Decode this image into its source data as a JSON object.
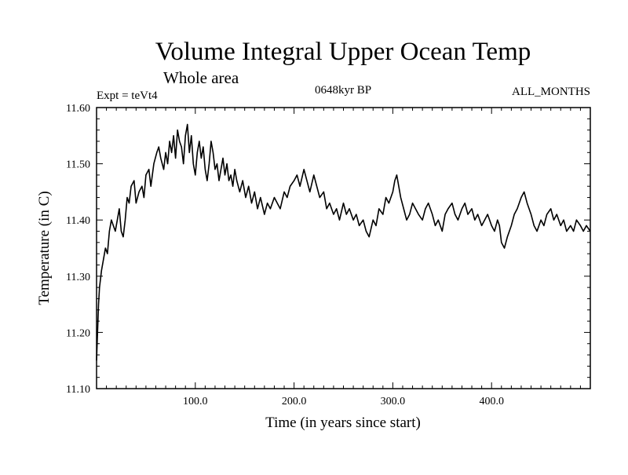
{
  "chart_data": {
    "type": "line",
    "title": "Volume Integral Upper Ocean Temp",
    "subtitle": "Whole area",
    "expt_label": "Expt = teVt4",
    "center_label": "0648kyr BP",
    "right_label": "ALL_MONTHS",
    "xlabel": "Time (in years since start)",
    "ylabel": "Temperature (in C)",
    "xlim": [
      0,
      500
    ],
    "ylim": [
      11.1,
      11.6
    ],
    "x_ticks": [
      100,
      200,
      300,
      400
    ],
    "x_tick_labels": [
      "100.0",
      "200.0",
      "300.0",
      "400.0"
    ],
    "y_ticks": [
      11.1,
      11.2,
      11.3,
      11.4,
      11.5,
      11.6
    ],
    "y_tick_labels": [
      "11.10",
      "11.20",
      "11.30",
      "11.40",
      "11.50",
      "11.60"
    ],
    "grid": false,
    "series": [
      {
        "x": [
          0,
          1,
          2,
          3,
          5,
          7,
          9,
          11,
          13,
          15,
          17,
          19,
          21,
          23,
          25,
          27,
          29,
          31,
          33,
          35,
          38,
          40,
          43,
          46,
          48,
          50,
          53,
          55,
          58,
          61,
          63,
          65,
          68,
          70,
          72,
          74,
          76,
          78,
          80,
          82,
          84,
          86,
          88,
          90,
          92,
          94,
          96,
          98,
          100,
          102,
          104,
          106,
          108,
          110,
          112,
          114,
          116,
          118,
          120,
          122,
          124,
          126,
          128,
          130,
          132,
          134,
          136,
          138,
          140,
          142,
          145,
          148,
          151,
          154,
          157,
          160,
          163,
          166,
          170,
          173,
          176,
          180,
          183,
          186,
          190,
          193,
          196,
          200,
          203,
          206,
          210,
          213,
          216,
          220,
          223,
          226,
          230,
          233,
          236,
          240,
          243,
          246,
          250,
          253,
          256,
          260,
          263,
          266,
          270,
          273,
          276,
          280,
          283,
          286,
          290,
          293,
          296,
          300,
          302,
          304,
          306,
          308,
          311,
          314,
          317,
          320,
          323,
          326,
          330,
          333,
          336,
          340,
          343,
          346,
          350,
          353,
          356,
          360,
          363,
          366,
          370,
          373,
          376,
          380,
          383,
          386,
          390,
          393,
          396,
          400,
          403,
          406,
          408,
          410,
          413,
          416,
          420,
          423,
          426,
          430,
          433,
          436,
          440,
          443,
          446,
          450,
          453,
          456,
          460,
          463,
          466,
          470,
          473,
          476,
          480,
          483,
          486,
          490,
          493,
          496,
          500
        ],
        "values": [
          11.15,
          11.2,
          11.25,
          11.28,
          11.31,
          11.33,
          11.35,
          11.34,
          11.38,
          11.4,
          11.39,
          11.38,
          11.4,
          11.42,
          11.38,
          11.37,
          11.4,
          11.44,
          11.43,
          11.46,
          11.47,
          11.43,
          11.45,
          11.46,
          11.44,
          11.48,
          11.49,
          11.46,
          11.5,
          11.52,
          11.53,
          11.51,
          11.49,
          11.52,
          11.5,
          11.54,
          11.52,
          11.55,
          11.51,
          11.56,
          11.54,
          11.53,
          11.5,
          11.55,
          11.57,
          11.52,
          11.55,
          11.5,
          11.48,
          11.52,
          11.54,
          11.51,
          11.53,
          11.49,
          11.47,
          11.5,
          11.54,
          11.52,
          11.49,
          11.5,
          11.47,
          11.49,
          11.51,
          11.48,
          11.5,
          11.47,
          11.48,
          11.46,
          11.49,
          11.47,
          11.45,
          11.47,
          11.44,
          11.46,
          11.43,
          11.45,
          11.42,
          11.44,
          11.41,
          11.43,
          11.42,
          11.44,
          11.43,
          11.42,
          11.45,
          11.44,
          11.46,
          11.47,
          11.48,
          11.46,
          11.49,
          11.47,
          11.45,
          11.48,
          11.46,
          11.44,
          11.45,
          11.42,
          11.43,
          11.41,
          11.42,
          11.4,
          11.43,
          11.41,
          11.42,
          11.4,
          11.41,
          11.39,
          11.4,
          11.38,
          11.37,
          11.4,
          11.39,
          11.42,
          11.41,
          11.44,
          11.43,
          11.45,
          11.47,
          11.48,
          11.46,
          11.44,
          11.42,
          11.4,
          11.41,
          11.43,
          11.42,
          11.41,
          11.4,
          11.42,
          11.43,
          11.41,
          11.39,
          11.4,
          11.38,
          11.41,
          11.42,
          11.43,
          11.41,
          11.4,
          11.42,
          11.43,
          11.41,
          11.42,
          11.4,
          11.41,
          11.39,
          11.4,
          11.41,
          11.39,
          11.38,
          11.4,
          11.39,
          11.36,
          11.35,
          11.37,
          11.39,
          11.41,
          11.42,
          11.44,
          11.45,
          11.43,
          11.41,
          11.39,
          11.38,
          11.4,
          11.39,
          11.41,
          11.42,
          11.4,
          11.41,
          11.39,
          11.4,
          11.38,
          11.39,
          11.38,
          11.4,
          11.39,
          11.38,
          11.39,
          11.38
        ]
      }
    ]
  }
}
